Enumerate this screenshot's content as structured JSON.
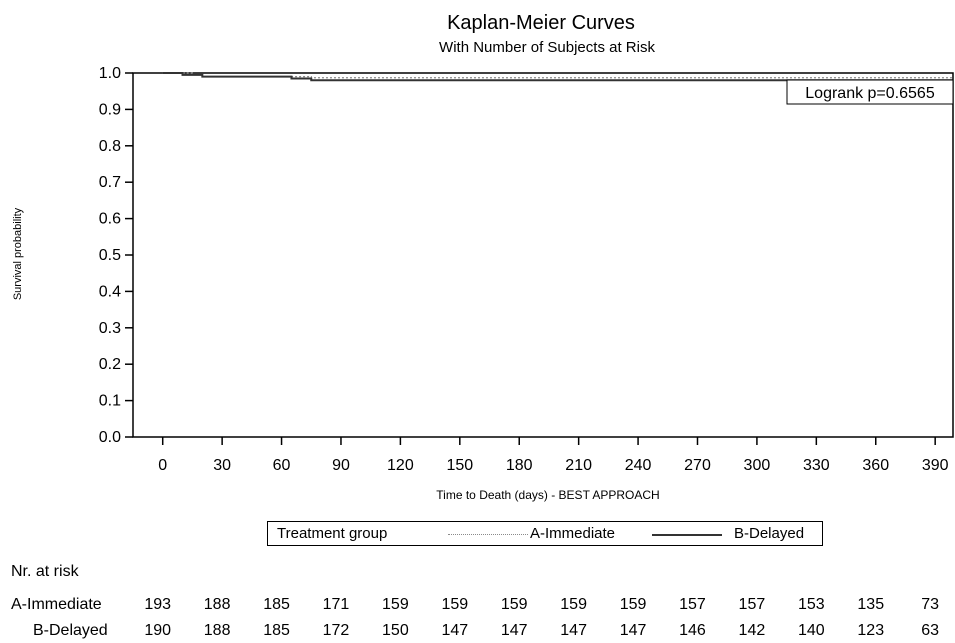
{
  "chart_data": {
    "type": "line",
    "title": "Kaplan-Meier Curves",
    "subtitle": "With Number of Subjects at Risk",
    "xlabel": "Time to Death (days) - BEST APPROACH",
    "ylabel": "Survival probability",
    "xlim": [
      -15,
      399
    ],
    "ylim": [
      0,
      1.0
    ],
    "x_ticks": [
      0,
      30,
      60,
      90,
      120,
      150,
      180,
      210,
      240,
      270,
      300,
      330,
      360,
      390
    ],
    "y_ticks": [
      0.0,
      0.1,
      0.2,
      0.3,
      0.4,
      0.5,
      0.6,
      0.7,
      0.8,
      0.9,
      1.0
    ],
    "y_tick_labels": [
      "0.0",
      "0.1",
      "0.2",
      "0.3",
      "0.4",
      "0.5",
      "0.6",
      "0.7",
      "0.8",
      "0.9",
      "1.0"
    ],
    "grid": false,
    "annotation": "Logrank p=0.6565",
    "series": [
      {
        "name": "A-Immediate",
        "style": "dotted",
        "color": "#8a8a8a",
        "points": [
          [
            0,
            1.0
          ],
          [
            15,
            0.995
          ],
          [
            20,
            0.99
          ],
          [
            60,
            0.99
          ],
          [
            75,
            0.987
          ],
          [
            399,
            0.987
          ]
        ]
      },
      {
        "name": "B-Delayed",
        "style": "solid",
        "color": "#333333",
        "points": [
          [
            0,
            1.0
          ],
          [
            10,
            0.995
          ],
          [
            20,
            0.99
          ],
          [
            62,
            0.99
          ],
          [
            65,
            0.985
          ],
          [
            75,
            0.98
          ],
          [
            399,
            0.98
          ]
        ]
      }
    ]
  },
  "legend": {
    "title": "Treatment group",
    "items": [
      "A-Immediate",
      "B-Delayed"
    ]
  },
  "risk_table": {
    "header": "Nr. at risk",
    "rows": [
      {
        "label": "A-Immediate",
        "values": [
          "193",
          "188",
          "185",
          "171",
          "159",
          "159",
          "159",
          "159",
          "159",
          "157",
          "157",
          "153",
          "135",
          "73"
        ]
      },
      {
        "label": "B-Delayed",
        "values": [
          "190",
          "188",
          "185",
          "172",
          "150",
          "147",
          "147",
          "147",
          "147",
          "146",
          "142",
          "140",
          "123",
          "63"
        ]
      }
    ]
  }
}
